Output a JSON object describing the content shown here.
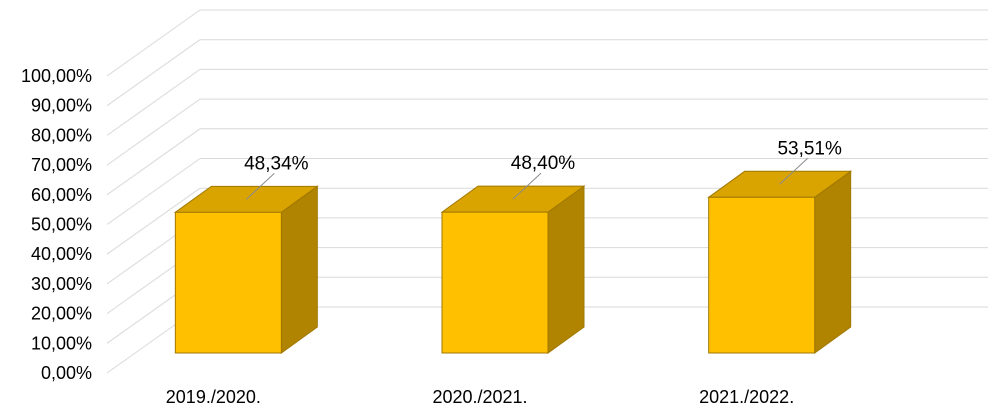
{
  "chart_data": {
    "type": "bar",
    "title": "",
    "xlabel": "",
    "ylabel": "",
    "categories": [
      "2019./2020.",
      "2020./2021.",
      "2021./2022."
    ],
    "values": [
      48.34,
      48.4,
      53.51
    ],
    "value_labels": [
      "48,34%",
      "48,40%",
      "53,51%"
    ],
    "ylim": [
      0,
      100
    ],
    "y_ticks": [
      0,
      10,
      20,
      30,
      40,
      50,
      60,
      70,
      80,
      90,
      100
    ],
    "y_tick_labels": [
      "0,00%",
      "10,00%",
      "20,00%",
      "30,00%",
      "40,00%",
      "50,00%",
      "60,00%",
      "70,00%",
      "80,00%",
      "90,00%",
      "100,00%"
    ],
    "grid": true,
    "legend": "none",
    "style": "3d-column",
    "colors": {
      "bar_front": "#FFC000",
      "bar_top": "#D9A300",
      "bar_side": "#B08400",
      "bar_edge": "#A07800",
      "gridline": "#D9D9D9",
      "text": "#000000",
      "leader_line": "#8C8C8C"
    }
  }
}
